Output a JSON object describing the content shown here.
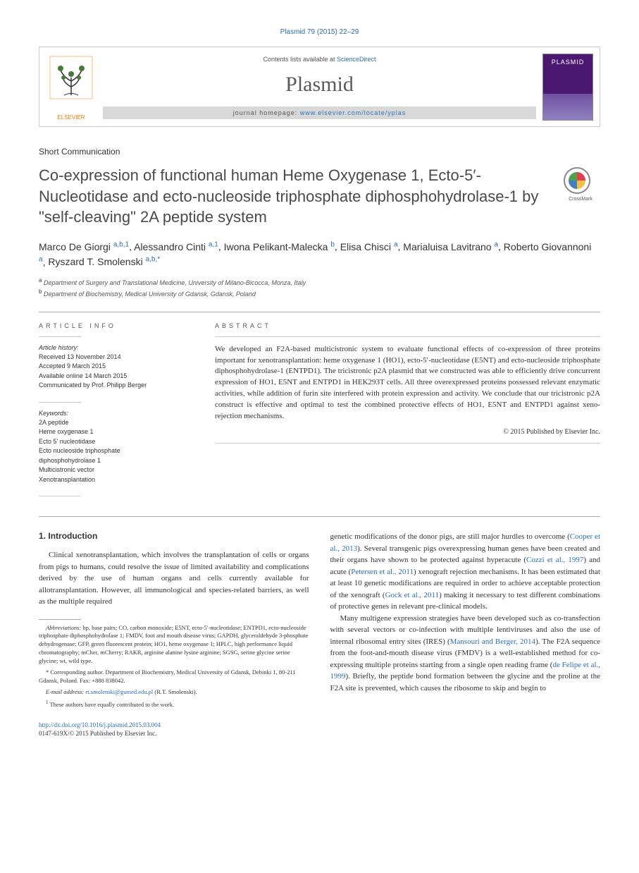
{
  "header": {
    "citation_prefix": "Plasmid 79 (2015) 22–29",
    "contents_text": "Contents lists available at ",
    "contents_link": "ScienceDirect",
    "journal_name": "Plasmid",
    "homepage_label": "journal homepage: ",
    "homepage_url": "www.elsevier.com/locate/yplas",
    "publisher_logo_text": "ELSEVIER",
    "cover_title": "PLASMID"
  },
  "article": {
    "type": "Short Communication",
    "title": "Co-expression of functional human Heme Oxygenase 1, Ecto-5′-Nucleotidase and ecto-nucleoside triphosphate diphosphohydrolase-1 by \"self-cleaving\" 2A peptide system",
    "crossmark_label": "CrossMark"
  },
  "authors": [
    {
      "name": "Marco De Giorgi",
      "aff": "a,b,1"
    },
    {
      "name": "Alessandro Cinti",
      "aff": "a,1"
    },
    {
      "name": "Iwona Pelikant-Malecka",
      "aff": "b"
    },
    {
      "name": "Elisa Chisci",
      "aff": "a"
    },
    {
      "name": "Marialuisa Lavitrano",
      "aff": "a"
    },
    {
      "name": "Roberto Giovannoni",
      "aff": "a"
    },
    {
      "name": "Ryszard T. Smolenski",
      "aff": "a,b,*"
    }
  ],
  "affiliations": [
    {
      "label": "a",
      "text": "Department of Surgery and Translational Medicine, University of Milano-Bicocca, Monza, Italy"
    },
    {
      "label": "b",
      "text": "Department of Biochemistry, Medical University of Gdansk, Gdansk, Poland"
    }
  ],
  "info": {
    "header": "ARTICLE INFO",
    "history_label": "Article history:",
    "history": [
      "Received 13 November 2014",
      "Accepted 9 March 2015",
      "Available online 14 March 2015",
      "Communicated by Prof. Philipp Berger"
    ],
    "keywords_label": "Keywords:",
    "keywords": [
      "2A peptide",
      "Heme oxygenase 1",
      "Ecto 5' nucleotidase",
      "Ecto nucleoside triphosphate",
      "diphosphohydrolase 1",
      "Multicistronic vector",
      "Xenotransplantation"
    ]
  },
  "abstract": {
    "header": "ABSTRACT",
    "text": "We developed an F2A-based multicistronic system to evaluate functional effects of co-expression of three proteins important for xenotransplantation: heme oxygenase 1 (HO1), ecto-5′-nucleotidase (E5NT) and ecto-nucleoside triphosphate diphosphohydrolase-1 (ENTPD1). The tricistronic p2A plasmid that we constructed was able to efficiently drive concurrent expression of HO1, E5NT and ENTPD1 in HEK293T cells. All three overexpressed proteins possessed relevant enzymatic activities, while addition of furin site interfered with protein expression and activity. We conclude that our tricistronic p2A construct is effective and optimal to test the combined protective effects of HO1, E5NT and ENTPD1 against xeno-rejection mechanisms.",
    "copyright": "© 2015 Published by Elsevier Inc."
  },
  "body": {
    "section_number": "1.",
    "section_title": "Introduction",
    "col1_p1": "Clinical xenotransplantation, which involves the transplantation of cells or organs from pigs to humans, could resolve the issue of limited availability and complications derived by the use of human organs and cells currently available for allotransplantation. However, all immunological and species-related barriers, as well as the multiple required",
    "col2_p1_a": "genetic modifications of the donor pigs, are still major hurdles to overcome (",
    "col2_p1_link1": "Cooper et al., 2013",
    "col2_p1_b": "). Several transgenic pigs overexpressing human genes have been created and their organs have shown to be protected against hyperacute (",
    "col2_p1_link2": "Cozzi et al., 1997",
    "col2_p1_c": ") and acute (",
    "col2_p1_link3": "Petersen et al., 2011",
    "col2_p1_d": ") xenograft rejection mechanisms. It has been estimated that at least 10 genetic modifications are required in order to achieve acceptable protection of the xenograft (",
    "col2_p1_link4": "Gock et al., 2011",
    "col2_p1_e": ") making it necessary to test different combinations of protective genes in relevant pre-clinical models.",
    "col2_p2_a": "Many multigene expression strategies have been developed such as co-transfection with several vectors or co-infection with multiple lentiviruses and also the use of internal ribosomal entry sites (IRES) (",
    "col2_p2_link1": "Mansouri and Berger, 2014",
    "col2_p2_b": "). The F2A sequence from the foot-and-mouth disease virus (FMDV) is a well-established method for co-expressing multiple proteins starting from a single open reading frame (",
    "col2_p2_link2": "de Felipe et al., 1999",
    "col2_p2_c": "). Briefly, the peptide bond formation between the glycine and the proline at the F2A site is prevented, which causes the ribosome to skip and begin to"
  },
  "footnotes": {
    "abbrev_label": "Abbreviations:",
    "abbrev_text": " bp, base pairs; CO, carbon monoxide; E5NT, ecto-5′-nucleotidase; ENTPD1, ecto-nucleoside triphosphate diphosphohydrolase 1; FMDV, foot and mouth disease virus; GAPDH, glyceraldehyde 3-phosphate dehydrogenase; GFP, green fluorescent protein; HO1, heme oxygenase 1; HPLC, high performance liquid chromatography; mCher, mCherry; RAKR, arginine alanine lysine arginine; SGSG, serine glycine serine glycine; wt, wild type.",
    "corr_label": "*",
    "corr_text": " Corresponding author. Department of Biochemistry, Medical University of Gdansk, Debinki 1, 80-211 Gdansk, Poland. Fax: +888 838042.",
    "email_label": "E-mail address:",
    "email_link": "rt.smolenski@gumed.edu.pl",
    "email_suffix": " (R.T. Smolenski).",
    "equal_label": "1",
    "equal_text": " These authors have equally contributed to the work."
  },
  "footer": {
    "doi": "http://dx.doi.org/10.1016/j.plasmid.2015.03.004",
    "issn_line": "0147-619X/© 2015 Published by Elsevier Inc."
  },
  "colors": {
    "link": "#2b6fb6",
    "text": "#333333",
    "publisher_orange": "#ff7800",
    "cover_purple": "#4a1870"
  }
}
